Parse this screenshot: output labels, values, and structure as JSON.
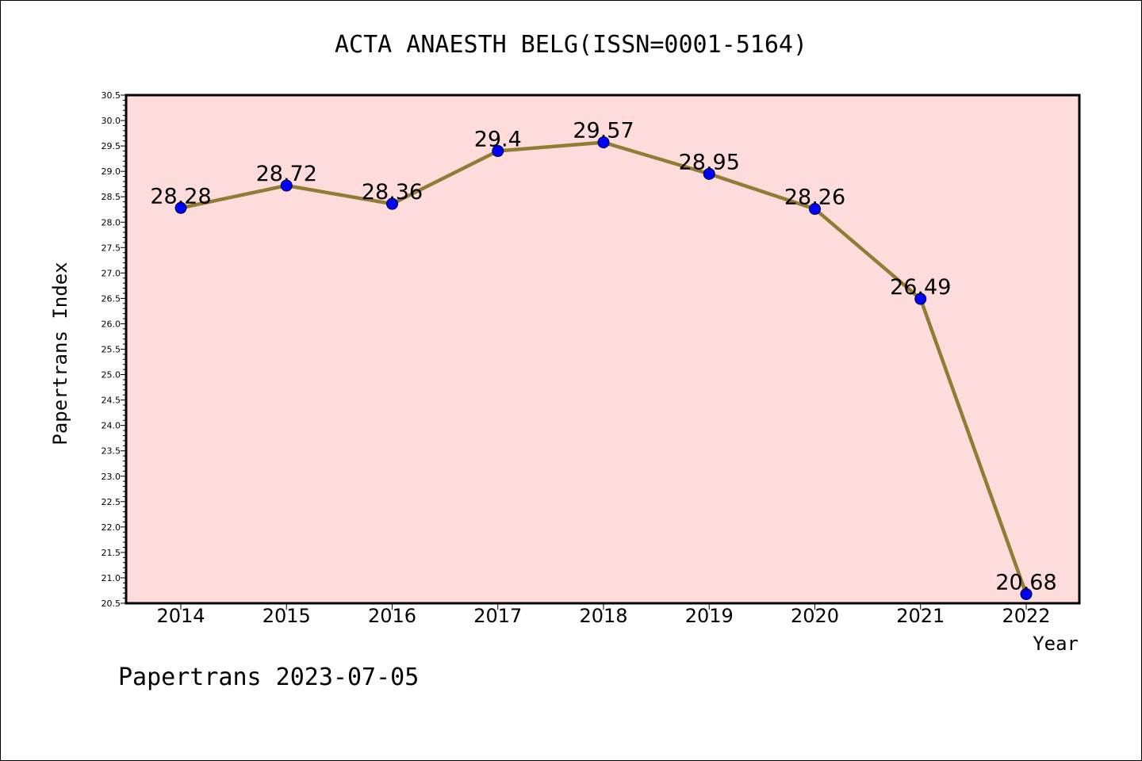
{
  "chart_data": {
    "type": "line",
    "title": "ACTA ANAESTH BELG(ISSN=0001-5164)",
    "xlabel": "Year",
    "ylabel": "Papertrans Index",
    "categories": [
      "2014",
      "2015",
      "2016",
      "2017",
      "2018",
      "2019",
      "2020",
      "2021",
      "2022"
    ],
    "series": [
      {
        "values": [
          28.28,
          28.72,
          28.36,
          29.4,
          29.57,
          28.95,
          28.26,
          26.49,
          20.68
        ],
        "data_labels": [
          "28.28",
          "28.72",
          "28.36",
          "29.4",
          "29.57",
          "28.95",
          "28.26",
          "26.49",
          "20.68"
        ]
      }
    ],
    "ylim": [
      20.5,
      30.5
    ],
    "yticks": [
      "20.5",
      "21.0",
      "21.5",
      "22.0",
      "22.5",
      "23.0",
      "23.5",
      "24.0",
      "24.5",
      "25.0",
      "25.5",
      "26.0",
      "26.5",
      "27.0",
      "27.5",
      "28.0",
      "28.5",
      "29.0",
      "29.5",
      "30.0",
      "30.5"
    ],
    "grid": false,
    "colors": {
      "plot_background": "#ffdcdc",
      "line": "#917c35",
      "marker": "#0000ff"
    }
  },
  "footer": "Papertrans 2023-07-05"
}
